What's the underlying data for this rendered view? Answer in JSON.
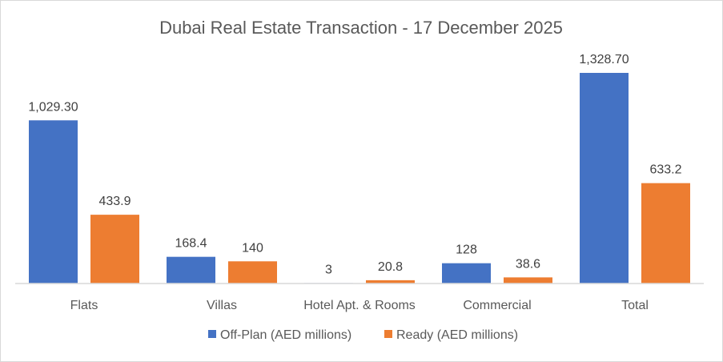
{
  "chart_data": {
    "type": "bar",
    "title": "Dubai Real Estate Transaction - 17 December 2025",
    "categories": [
      "Flats",
      "Villas",
      "Hotel Apt. & Rooms",
      "Commercial",
      "Total"
    ],
    "series": [
      {
        "name": "Off-Plan (AED millions)",
        "color": "#4472C4",
        "values": [
          1029.3,
          168.4,
          3,
          128,
          1328.7
        ],
        "labels": [
          "1,029.30",
          "168.4",
          "3",
          "128",
          "1,328.70"
        ]
      },
      {
        "name": "Ready (AED millions)",
        "color": "#ED7D31",
        "values": [
          433.9,
          140,
          20.8,
          38.6,
          633.2
        ],
        "labels": [
          "433.9",
          "140",
          "20.8",
          "38.6",
          "633.2"
        ]
      }
    ],
    "ylim": [
      0,
      1450
    ],
    "grid": false,
    "legend_position": "bottom",
    "xlabel": "",
    "ylabel": ""
  }
}
